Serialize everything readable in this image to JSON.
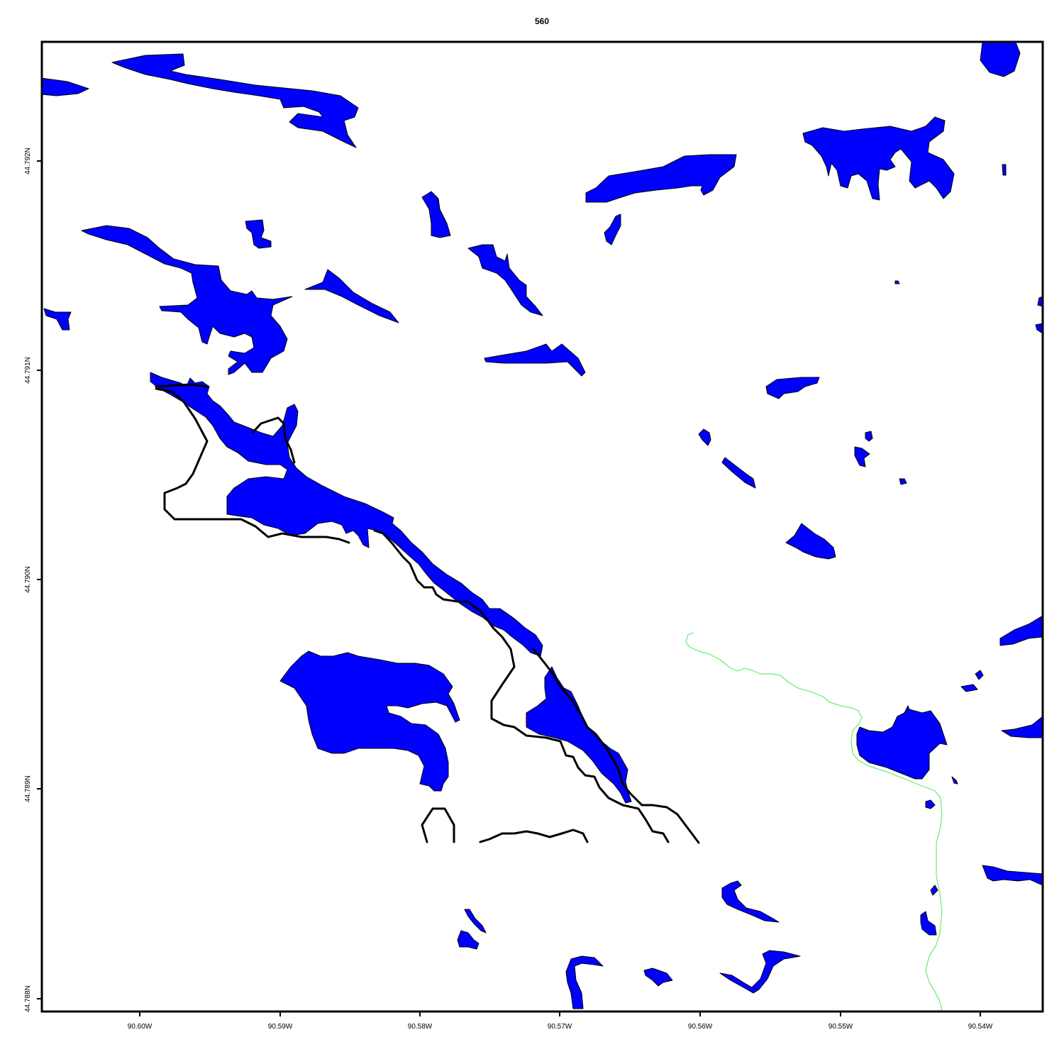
{
  "map": {
    "title": "560",
    "colors": {
      "water": "#0000ff",
      "road": "#000000",
      "stream": "#66ee66",
      "frame": "#000000"
    },
    "x_ticks": [
      "90.60W",
      "90.59W",
      "90.58W",
      "90.57W",
      "90.56W",
      "90.55W",
      "90.54W"
    ],
    "y_ticks": [
      "44.792N",
      "44.791N",
      "44.790N",
      "44.789N",
      "44.788N"
    ],
    "layers": [
      "lakes",
      "roads",
      "streams"
    ]
  }
}
